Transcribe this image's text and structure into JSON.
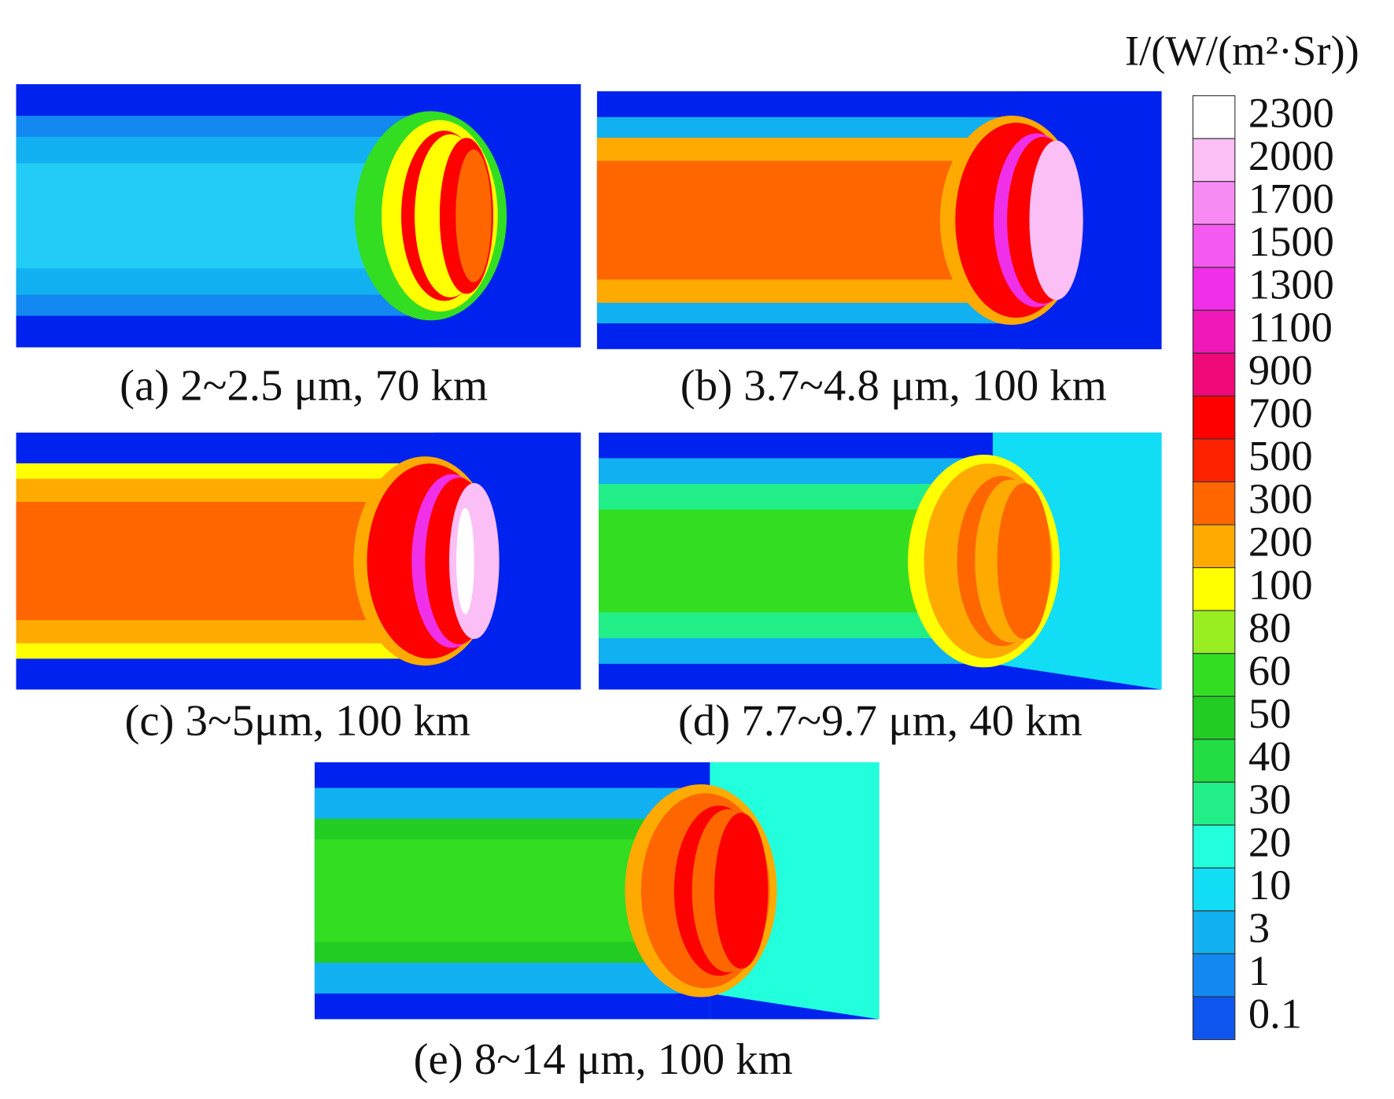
{
  "panels": [
    {
      "caption": "(a) 2~2.5 μm, 70 km"
    },
    {
      "caption": "(b) 3.7~4.8 μm, 100 km"
    },
    {
      "caption": "(c) 3~5μm, 100 km"
    },
    {
      "caption": "(d) 7.7~9.7 μm, 40 km"
    },
    {
      "caption": "(e) 8~14 μm, 100 km"
    }
  ],
  "colorbar": {
    "title": "I/(W/(m²·Sr))",
    "labels": [
      "2300",
      "2000",
      "1700",
      "1500",
      "1300",
      "1100",
      "900",
      "700",
      "500",
      "300",
      "200",
      "100",
      "80",
      "60",
      "50",
      "40",
      "30",
      "20",
      "10",
      "3",
      "1",
      "0.1"
    ],
    "colors": [
      "#ffffff",
      "#fbbef5",
      "#f88af3",
      "#f45af0",
      "#f030e8",
      "#f018b8",
      "#f00878",
      "#ff0000",
      "#ff2200",
      "#ff6600",
      "#ffaa00",
      "#ffff00",
      "#99ee22",
      "#33dd22",
      "#22cc22",
      "#22dd44",
      "#22ee88",
      "#22ffdd",
      "#11ddf5",
      "#11b0f0",
      "#1288f0",
      "#0f55f0"
    ]
  }
}
